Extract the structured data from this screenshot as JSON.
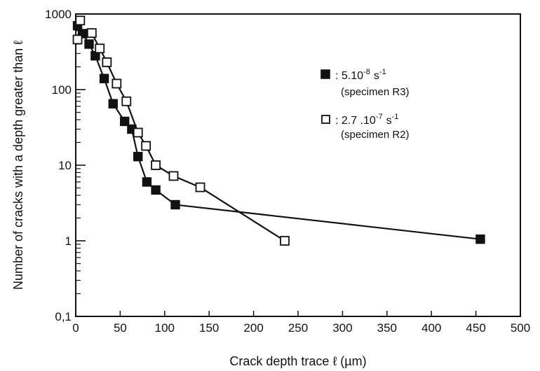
{
  "chart_data": {
    "type": "scatter",
    "xlabel": "Crack depth trace ℓ (µm)",
    "ylabel": "Number of cracks with a depth greater than ℓ",
    "xlim": [
      0,
      500
    ],
    "ylim": [
      0.1,
      1000
    ],
    "yscale": "log",
    "x_ticks": [
      0,
      50,
      100,
      150,
      200,
      250,
      300,
      350,
      400,
      450,
      500
    ],
    "y_ticks": [
      {
        "value": 1000,
        "label": "1000"
      },
      {
        "value": 100,
        "label": "100"
      },
      {
        "value": 10,
        "label": "10"
      },
      {
        "value": 1,
        "label": "1"
      },
      {
        "value": 0.1,
        "label": "0,1"
      }
    ],
    "grid": false,
    "legend_position": "top-right",
    "series": [
      {
        "name": "5.10-8 s-1 (specimen R3)",
        "legend_rate": ": 5.10",
        "legend_exp": "-8",
        "legend_unit": "s",
        "legend_unit_exp": "-1",
        "legend_specimen": "(specimen R3)",
        "marker": "filled-square",
        "color": "#111111",
        "points": [
          {
            "x": 2,
            "y": 700
          },
          {
            "x": 8,
            "y": 550
          },
          {
            "x": 15,
            "y": 400
          },
          {
            "x": 22,
            "y": 280
          },
          {
            "x": 32,
            "y": 140
          },
          {
            "x": 42,
            "y": 65
          },
          {
            "x": 55,
            "y": 38
          },
          {
            "x": 63,
            "y": 30
          },
          {
            "x": 70,
            "y": 13
          },
          {
            "x": 80,
            "y": 6
          },
          {
            "x": 90,
            "y": 4.7
          },
          {
            "x": 112,
            "y": 3
          },
          {
            "x": 455,
            "y": 1.05
          }
        ]
      },
      {
        "name": "2.7.10-7 s-1 (specimen R2)",
        "legend_rate": ": 2.7 .10",
        "legend_exp": "-7",
        "legend_unit": "s",
        "legend_unit_exp": "-1",
        "legend_specimen": "(specimen R2)",
        "marker": "open-square",
        "color": "#111111",
        "points": [
          {
            "x": 5,
            "y": 820
          },
          {
            "x": 2,
            "y": 460
          },
          {
            "x": 18,
            "y": 560
          },
          {
            "x": 27,
            "y": 350
          },
          {
            "x": 35,
            "y": 230
          },
          {
            "x": 46,
            "y": 120
          },
          {
            "x": 57,
            "y": 70
          },
          {
            "x": 70,
            "y": 27
          },
          {
            "x": 79,
            "y": 18
          },
          {
            "x": 90,
            "y": 10
          },
          {
            "x": 110,
            "y": 7.2
          },
          {
            "x": 140,
            "y": 5.1
          },
          {
            "x": 235,
            "y": 1
          }
        ]
      }
    ]
  }
}
